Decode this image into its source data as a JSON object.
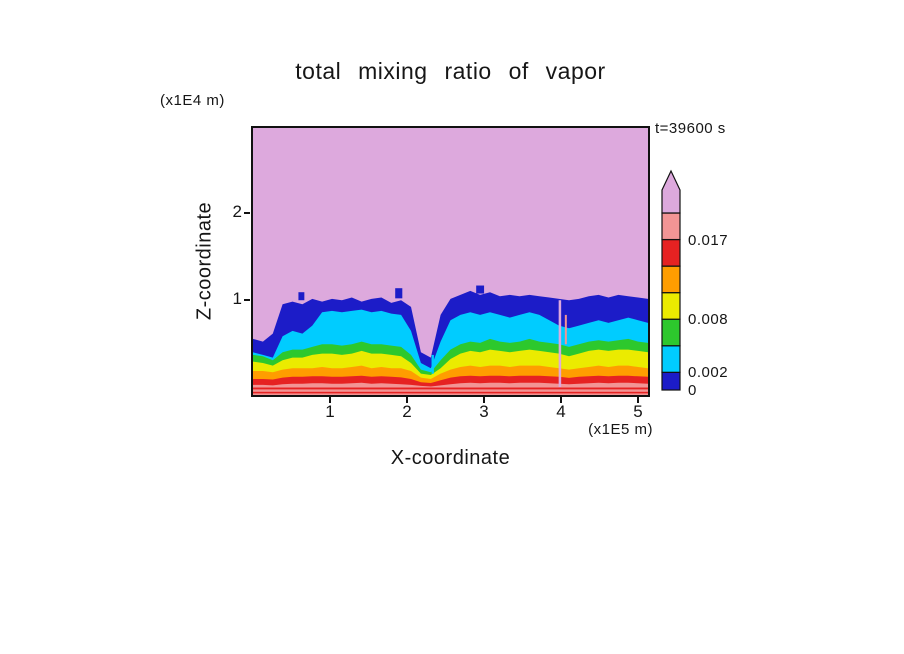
{
  "title": "total mixing ratio of vapor",
  "time_label": "t=39600 s",
  "axes": {
    "x_label": "X-coordinate",
    "x_unit_label": "(x1E5 m)",
    "y_label": "Z-coordinate",
    "y_unit_label": "(x1E4 m)",
    "x_ticks": [
      "1",
      "2",
      "3",
      "4",
      "5"
    ],
    "y_ticks": [
      "1",
      "2"
    ]
  },
  "colorbar": {
    "max_value": 0.02,
    "tick_labels": [
      {
        "text": "0",
        "value": 0
      },
      {
        "text": "0.002",
        "value": 0.002
      },
      {
        "text": "0.008",
        "value": 0.008
      },
      {
        "text": "0.017",
        "value": 0.017
      }
    ]
  },
  "chart_data": {
    "type": "heatmap",
    "subtype": "filled-contour-xz-cross-section",
    "title": "total mixing ratio of vapor",
    "xlabel": "X-coordinate (x1E5 m)",
    "ylabel": "Z-coordinate (x1E4 m)",
    "time": "t=39600 s",
    "x_range": [
      0,
      5.15
    ],
    "z_range": [
      0,
      3.05
    ],
    "x_tick_values": [
      1,
      2,
      3,
      4,
      5
    ],
    "z_tick_values": [
      1,
      2
    ],
    "levels": [
      0,
      0.002,
      0.005,
      0.008,
      0.011,
      0.014,
      0.017,
      0.02
    ],
    "above_top_level_color": "#dda9dd",
    "bands": [
      {
        "value_range": [
          0,
          0.002
        ],
        "color": "#1c1cc8",
        "top_frac": [
          0.21,
          0.2,
          0.23,
          0.34,
          0.35,
          0.34,
          0.36,
          0.35,
          0.36,
          0.355,
          0.365,
          0.35,
          0.36,
          0.365,
          0.345,
          0.355,
          0.33,
          0.16,
          0.14,
          0.3,
          0.36,
          0.375,
          0.39,
          0.375,
          0.385,
          0.37,
          0.375,
          0.37,
          0.375,
          0.37,
          0.365,
          0.36,
          0.355,
          0.36,
          0.37,
          0.375,
          0.365,
          0.375,
          0.37,
          0.365,
          0.36
        ]
      },
      {
        "value_range": [
          0.002,
          0.005
        ],
        "color": "#00ccff",
        "top_frac": [
          0.16,
          0.15,
          0.14,
          0.22,
          0.24,
          0.23,
          0.26,
          0.31,
          0.315,
          0.31,
          0.315,
          0.32,
          0.31,
          0.315,
          0.305,
          0.3,
          0.24,
          0.12,
          0.1,
          0.2,
          0.28,
          0.3,
          0.31,
          0.3,
          0.31,
          0.3,
          0.29,
          0.3,
          0.31,
          0.3,
          0.28,
          0.26,
          0.25,
          0.26,
          0.27,
          0.28,
          0.27,
          0.28,
          0.29,
          0.28,
          0.27
        ]
      },
      {
        "value_range": [
          0.005,
          0.008
        ],
        "color": "#2dc82d",
        "top_frac": [
          0.15,
          0.145,
          0.13,
          0.16,
          0.17,
          0.17,
          0.18,
          0.19,
          0.19,
          0.185,
          0.19,
          0.2,
          0.19,
          0.19,
          0.185,
          0.18,
          0.15,
          0.095,
          0.085,
          0.13,
          0.17,
          0.19,
          0.2,
          0.195,
          0.21,
          0.2,
          0.195,
          0.2,
          0.21,
          0.2,
          0.195,
          0.19,
          0.18,
          0.19,
          0.2,
          0.205,
          0.2,
          0.205,
          0.21,
          0.2,
          0.195
        ]
      },
      {
        "value_range": [
          0.008,
          0.011
        ],
        "color": "#ebeb00",
        "top_frac": [
          0.125,
          0.12,
          0.11,
          0.13,
          0.14,
          0.14,
          0.15,
          0.155,
          0.155,
          0.15,
          0.155,
          0.165,
          0.155,
          0.155,
          0.15,
          0.145,
          0.12,
          0.08,
          0.075,
          0.1,
          0.135,
          0.155,
          0.165,
          0.16,
          0.17,
          0.165,
          0.16,
          0.165,
          0.17,
          0.165,
          0.16,
          0.155,
          0.145,
          0.155,
          0.165,
          0.17,
          0.165,
          0.17,
          0.17,
          0.165,
          0.16
        ]
      },
      {
        "value_range": [
          0.011,
          0.014
        ],
        "color": "#ff9d00",
        "top_frac": [
          0.09,
          0.09,
          0.085,
          0.095,
          0.1,
          0.1,
          0.1,
          0.105,
          0.1,
          0.1,
          0.105,
          0.11,
          0.1,
          0.105,
          0.1,
          0.1,
          0.09,
          0.065,
          0.06,
          0.08,
          0.095,
          0.105,
          0.11,
          0.105,
          0.11,
          0.11,
          0.105,
          0.11,
          0.11,
          0.11,
          0.105,
          0.1,
          0.095,
          0.1,
          0.105,
          0.11,
          0.105,
          0.11,
          0.11,
          0.105,
          0.1
        ]
      },
      {
        "value_range": [
          0.014,
          0.017
        ],
        "color": "#e62222",
        "top_frac": [
          0.06,
          0.06,
          0.058,
          0.065,
          0.068,
          0.068,
          0.07,
          0.07,
          0.068,
          0.068,
          0.07,
          0.072,
          0.068,
          0.07,
          0.068,
          0.066,
          0.06,
          0.048,
          0.045,
          0.055,
          0.065,
          0.07,
          0.072,
          0.07,
          0.072,
          0.072,
          0.07,
          0.072,
          0.072,
          0.072,
          0.07,
          0.068,
          0.064,
          0.068,
          0.07,
          0.072,
          0.07,
          0.072,
          0.072,
          0.07,
          0.068
        ]
      },
      {
        "value_range": [
          0.017,
          0.02
        ],
        "color": "#f29595",
        "top_frac": [
          0.038,
          0.038,
          0.036,
          0.04,
          0.042,
          0.042,
          0.044,
          0.044,
          0.042,
          0.042,
          0.044,
          0.046,
          0.042,
          0.044,
          0.042,
          0.04,
          0.038,
          0.034,
          0.032,
          0.036,
          0.04,
          0.044,
          0.046,
          0.044,
          0.046,
          0.046,
          0.044,
          0.046,
          0.046,
          0.046,
          0.044,
          0.042,
          0.04,
          0.042,
          0.044,
          0.046,
          0.044,
          0.046,
          0.046,
          0.044,
          0.042
        ]
      }
    ],
    "stripes": [
      {
        "color": "#e62222",
        "top": 0.028,
        "bottom": 0.021
      },
      {
        "color": "#e62222",
        "top": 0.012,
        "bottom": 0.006
      }
    ],
    "spots": [
      {
        "color": "#1c1cc8",
        "x": 0.115,
        "top": 0.385,
        "w": 0.015,
        "h": 0.03
      },
      {
        "color": "#1c1cc8",
        "x": 0.36,
        "top": 0.4,
        "w": 0.018,
        "h": 0.038
      },
      {
        "color": "#1c1cc8",
        "x": 0.565,
        "top": 0.41,
        "w": 0.02,
        "h": 0.03
      },
      {
        "color": "#00ccff",
        "x": 0.452,
        "top": 0.15,
        "w": 0.006,
        "h": 0.07
      }
    ],
    "streaks": [
      {
        "color": "#dda9dd",
        "x": 0.777,
        "top": 0.355,
        "bottom": 0.03,
        "w": 2.5
      },
      {
        "color": "#f29595",
        "x": 0.792,
        "top": 0.3,
        "bottom": 0.19,
        "w": 2
      }
    ]
  }
}
